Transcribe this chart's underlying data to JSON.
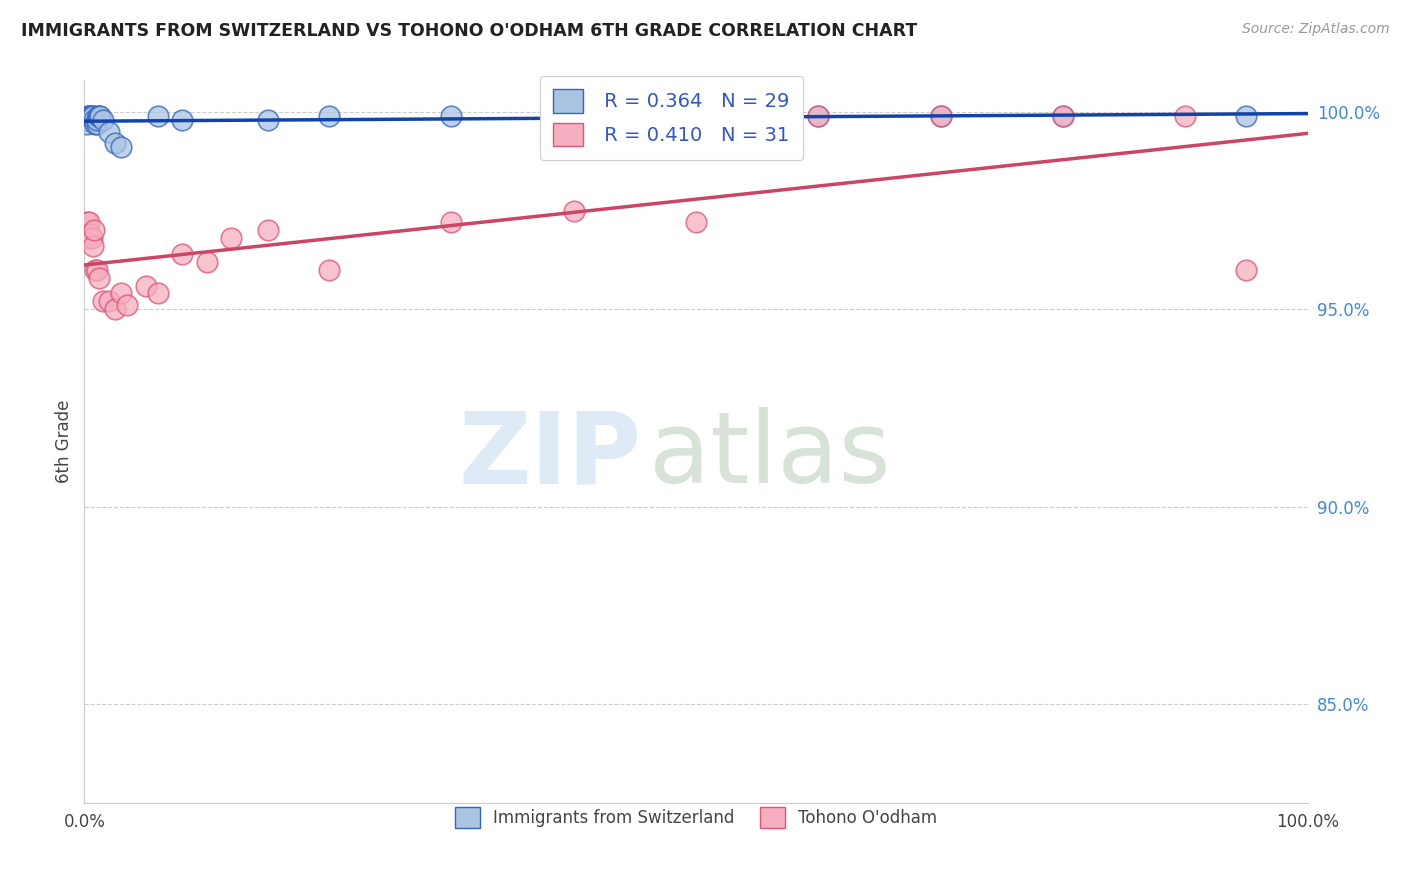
{
  "title": "IMMIGRANTS FROM SWITZERLAND VS TOHONO O'ODHAM 6TH GRADE CORRELATION CHART",
  "source": "Source: ZipAtlas.com",
  "ylabel": "6th Grade",
  "xlim": [
    0.0,
    1.0
  ],
  "ylim": [
    0.825,
    1.008
  ],
  "ytick_vals": [
    0.85,
    0.9,
    0.95,
    1.0
  ],
  "legend_label1": "Immigrants from Switzerland",
  "legend_label2": "Tohono O'odham",
  "R1": "0.364",
  "N1": "29",
  "R2": "0.410",
  "N2": "31",
  "color_blue": "#aac4e2",
  "color_pink": "#f5afc0",
  "edge_blue": "#3366bb",
  "edge_pink": "#dd5577",
  "line_blue": "#1144aa",
  "line_pink": "#cc4466",
  "blue_x": [
    0.001,
    0.002,
    0.003,
    0.004,
    0.005,
    0.006,
    0.006,
    0.007,
    0.008,
    0.009,
    0.01,
    0.01,
    0.011,
    0.012,
    0.013,
    0.015,
    0.02,
    0.025,
    0.03,
    0.06,
    0.08,
    0.15,
    0.2,
    0.3,
    0.4,
    0.6,
    0.7,
    0.8,
    0.95
  ],
  "blue_y": [
    0.998,
    0.997,
    0.999,
    0.999,
    0.999,
    0.999,
    0.999,
    0.999,
    0.998,
    0.997,
    0.997,
    0.998,
    0.999,
    0.999,
    0.999,
    0.998,
    0.995,
    0.992,
    0.991,
    0.999,
    0.998,
    0.998,
    0.999,
    0.999,
    0.999,
    0.999,
    0.999,
    0.999,
    0.999
  ],
  "pink_x": [
    0.001,
    0.002,
    0.003,
    0.004,
    0.005,
    0.006,
    0.007,
    0.008,
    0.009,
    0.01,
    0.012,
    0.015,
    0.02,
    0.025,
    0.03,
    0.035,
    0.05,
    0.06,
    0.08,
    0.1,
    0.12,
    0.15,
    0.2,
    0.3,
    0.4,
    0.5,
    0.6,
    0.7,
    0.8,
    0.9,
    0.95
  ],
  "pink_y": [
    0.97,
    0.972,
    0.968,
    0.972,
    0.969,
    0.968,
    0.966,
    0.97,
    0.96,
    0.96,
    0.958,
    0.952,
    0.952,
    0.95,
    0.954,
    0.951,
    0.956,
    0.954,
    0.964,
    0.962,
    0.968,
    0.97,
    0.96,
    0.972,
    0.975,
    0.972,
    0.999,
    0.999,
    0.999,
    0.999,
    0.96
  ]
}
